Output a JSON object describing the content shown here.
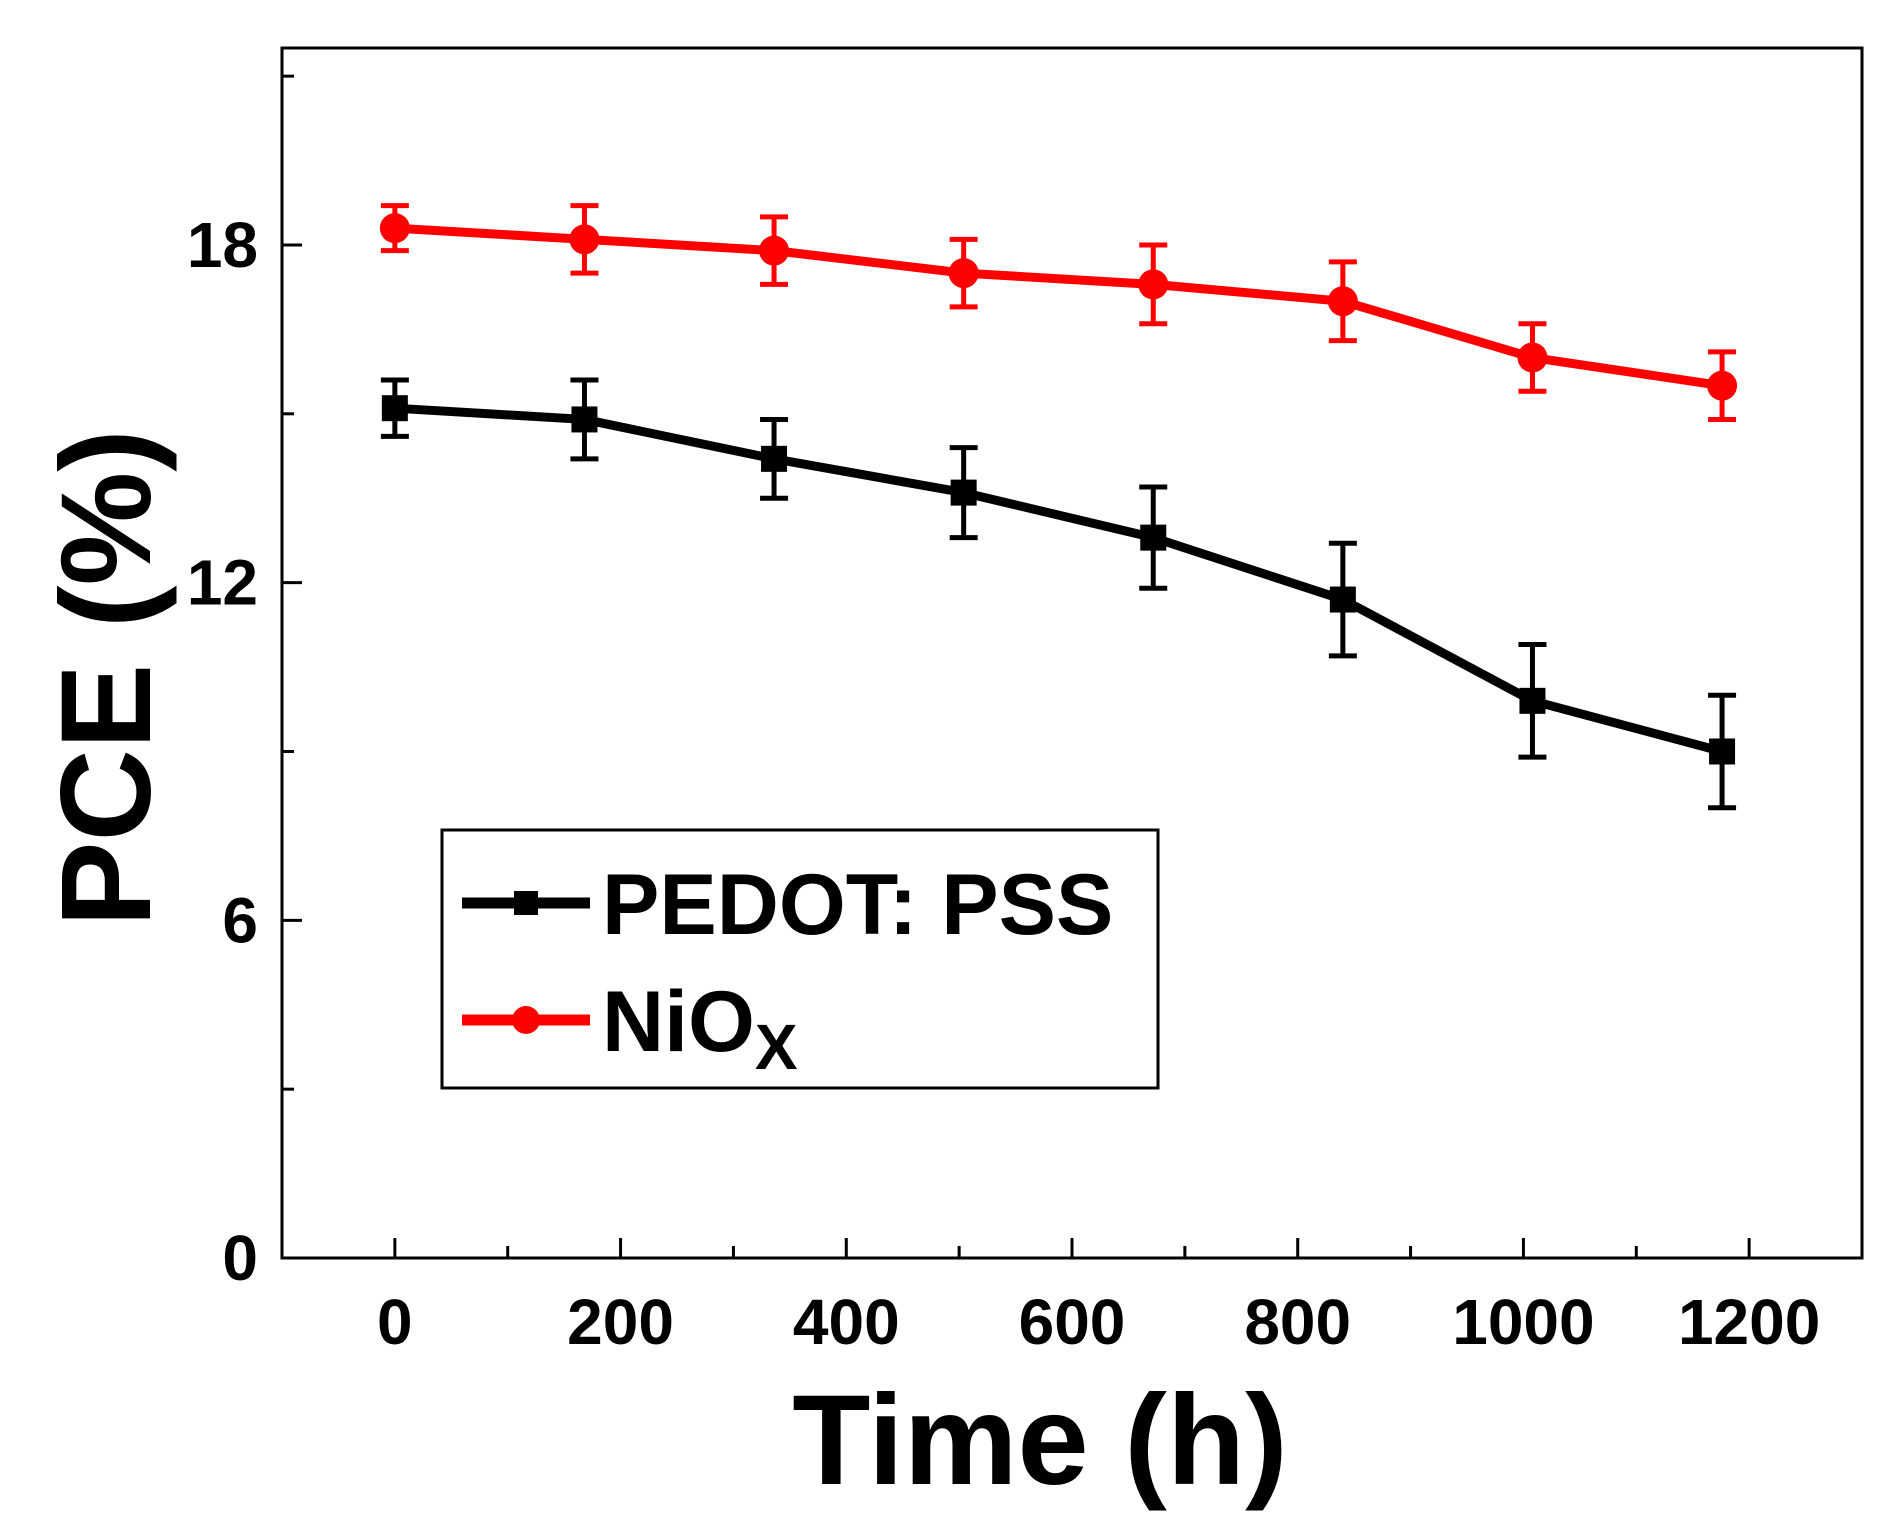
{
  "chart_data": {
    "type": "line",
    "title": "",
    "xlabel": "Time (h)",
    "ylabel": "PCE (%)",
    "xlim": [
      -100,
      1300
    ],
    "ylim": [
      0,
      21.5
    ],
    "xticks": [
      0,
      200,
      400,
      600,
      800,
      1000,
      1200
    ],
    "xtick_labels": [
      "0",
      "200",
      "400",
      "600",
      "800",
      "1000",
      "1200"
    ],
    "x_minor_ticks": [
      100,
      300,
      500,
      700,
      900,
      1100
    ],
    "yticks": [
      0,
      6,
      12,
      18
    ],
    "ytick_labels": [
      "0",
      "6",
      "12",
      "18"
    ],
    "y_minor_ticks": [
      3,
      9,
      15,
      21
    ],
    "grid": false,
    "legend": {
      "position": "lower-left",
      "entries": [
        {
          "series": "PEDOT:PSS",
          "label": "PEDOT: PSS"
        },
        {
          "series": "NiOx",
          "label_main": "NiO",
          "label_sub": "X"
        }
      ]
    },
    "series": [
      {
        "name": "PEDOT: PSS",
        "color": "#000000",
        "marker": "square",
        "x": [
          0,
          168,
          336,
          504,
          672,
          840,
          1008,
          1176
        ],
        "y": [
          15.1,
          14.9,
          14.2,
          13.6,
          12.8,
          11.7,
          9.9,
          9.0
        ],
        "err": [
          0.5,
          0.7,
          0.7,
          0.8,
          0.9,
          1.0,
          1.0,
          1.0
        ]
      },
      {
        "name": "NiOx",
        "color": "#ff0000",
        "marker": "circle",
        "x": [
          0,
          168,
          336,
          504,
          672,
          840,
          1008,
          1176
        ],
        "y": [
          18.3,
          18.1,
          17.9,
          17.5,
          17.3,
          17.0,
          16.0,
          15.5
        ],
        "err": [
          0.4,
          0.6,
          0.6,
          0.6,
          0.7,
          0.7,
          0.6,
          0.6
        ]
      }
    ]
  }
}
